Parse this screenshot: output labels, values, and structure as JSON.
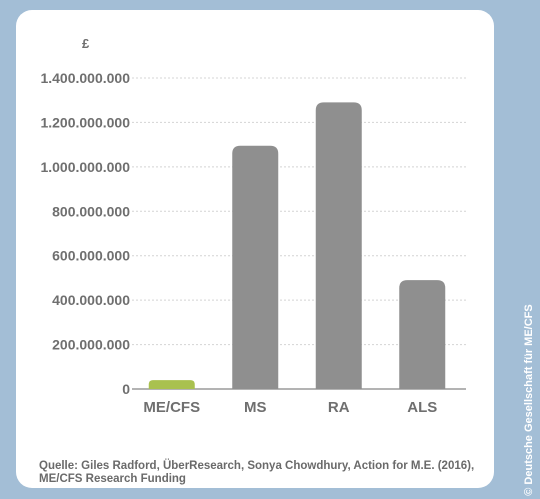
{
  "chart_data": {
    "type": "bar",
    "categories": [
      "ME/CFS",
      "MS",
      "RA",
      "ALS"
    ],
    "values": [
      40000000,
      1095000000,
      1290000000,
      490000000
    ],
    "ylim": [
      0,
      1400000000
    ],
    "yticks": [
      0,
      200000000,
      400000000,
      600000000,
      800000000,
      1000000000,
      1200000000,
      1400000000
    ],
    "ytick_labels": [
      "0",
      "200.000.000",
      "400.000.000",
      "600.000.000",
      "800.000.000",
      "1.000.000.000",
      "1.200.000.000",
      "1.400.000.000"
    ],
    "unit_label": "£",
    "grid": true,
    "colors": [
      "#a9c14f",
      "#8f8f8f",
      "#8f8f8f",
      "#8f8f8f"
    ]
  },
  "source": "Quelle: Giles Radford, ÜberResearch, Sonya Chowdhury, Action for M.E. (2016), ME/CFS Research Funding",
  "credit": "© Deutsche Gesellschaft für ME/CFS",
  "colors": {
    "background": "#a3bed6",
    "card": "#ffffff",
    "grid": "#d4d4d4",
    "axis": "#9a9a9a"
  }
}
